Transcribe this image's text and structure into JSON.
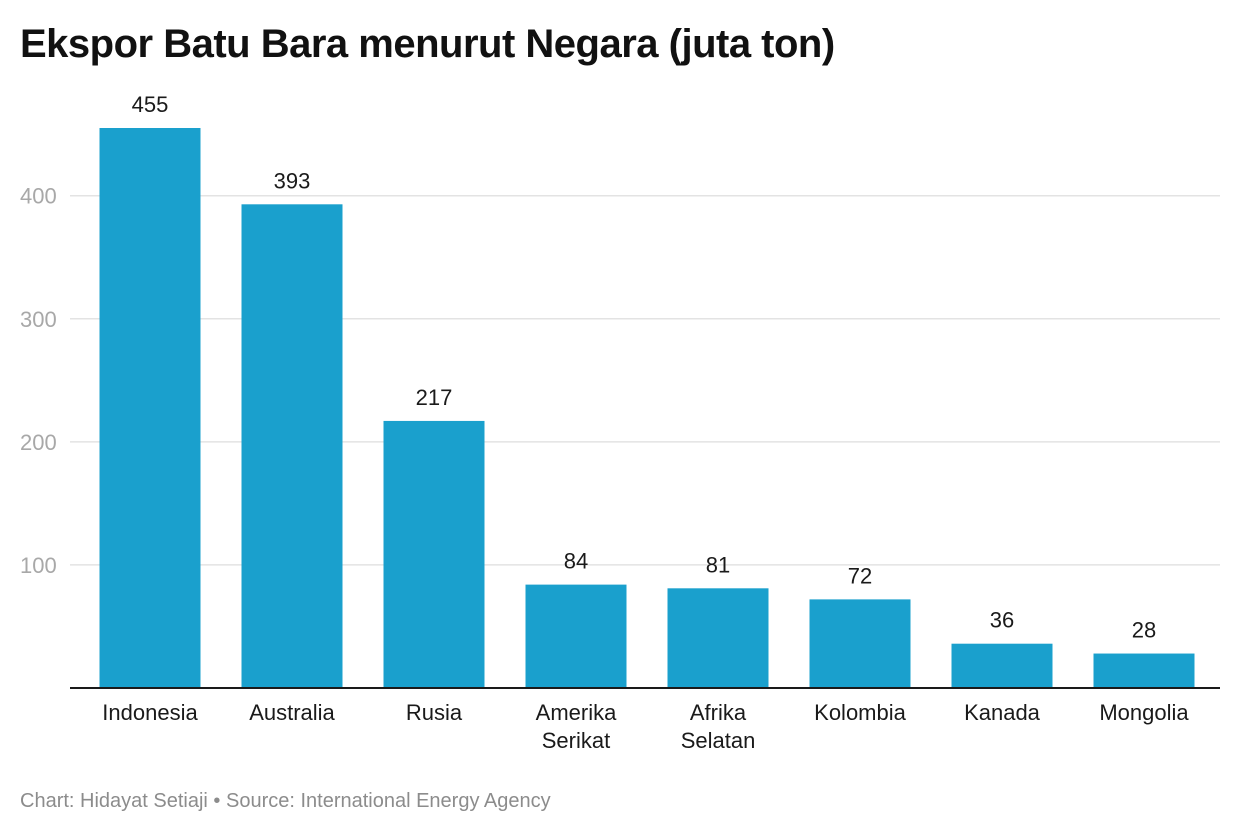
{
  "chart_data": {
    "type": "bar",
    "title": "Ekspor Batu Bara menurut Negara (juta ton)",
    "xlabel": "",
    "ylabel": "",
    "categories": [
      "Indonesia",
      "Australia",
      "Rusia",
      "Amerika Serikat",
      "Afrika Selatan",
      "Kolombia",
      "Kanada",
      "Mongolia"
    ],
    "category_lines": [
      [
        "Indonesia"
      ],
      [
        "Australia"
      ],
      [
        "Rusia"
      ],
      [
        "Amerika",
        "Serikat"
      ],
      [
        "Afrika",
        "Selatan"
      ],
      [
        "Kolombia"
      ],
      [
        "Kanada"
      ],
      [
        "Mongolia"
      ]
    ],
    "values": [
      455,
      393,
      217,
      84,
      81,
      72,
      36,
      28
    ],
    "ylim": [
      0,
      455
    ],
    "yticks": [
      100,
      200,
      300,
      400
    ],
    "grid": true,
    "bar_color": "#1aa0cd"
  },
  "footer": {
    "credit": "Chart: Hidayat Setiaji • Source: International Energy Agency"
  }
}
